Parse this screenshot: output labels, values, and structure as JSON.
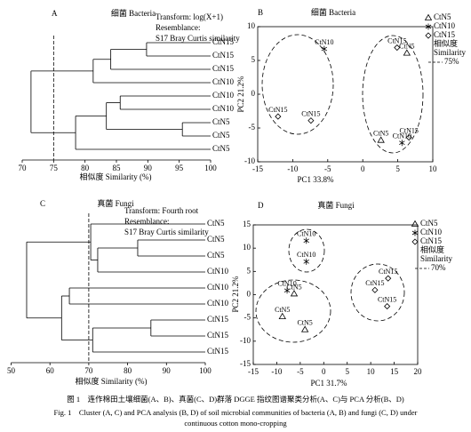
{
  "chart_data": [
    {
      "type": "dendrogram",
      "panel": "A",
      "title": "细菌 Bacteria",
      "annotations": [
        "Transform: log(X+1)",
        "Resemblance:",
        "S17 Bray Curtis similarity"
      ],
      "x_label": "相似度 Similarity (%)",
      "xlim": [
        70,
        100
      ],
      "xticks": [
        70,
        75,
        80,
        85,
        90,
        95,
        100
      ],
      "cutoff": 75,
      "tree": {
        "height": 71.4,
        "children": [
          {
            "height": 81.3,
            "children": [
              {
                "height": 84.1,
                "children": [
                  {
                    "height": 89.8,
                    "children": [
                      {
                        "label": "CtN15"
                      },
                      {
                        "label": "CtN15"
                      }
                    ]
                  },
                  {
                    "label": "CtN15"
                  }
                ]
              },
              {
                "label": "CtN10"
              }
            ]
          },
          {
            "height": 78.5,
            "children": [
              {
                "height": 83.4,
                "children": [
                  {
                    "height": 85.6,
                    "children": [
                      {
                        "label": "CtN10"
                      },
                      {
                        "label": "CtN10"
                      }
                    ]
                  },
                  {
                    "height": 95.5,
                    "children": [
                      {
                        "label": "CtN5"
                      },
                      {
                        "label": "CtN5"
                      }
                    ]
                  }
                ]
              },
              {
                "label": "CtN5"
              }
            ]
          }
        ]
      }
    },
    {
      "type": "scatter",
      "panel": "B",
      "title": "细菌 Bacteria",
      "x_label": "PC1 33.8%",
      "y_label": "PC2 21.2%",
      "xlim": [
        -15,
        10
      ],
      "xticks": [
        -15,
        -10,
        -5,
        0,
        5,
        10
      ],
      "ylim": [
        -10,
        10
      ],
      "yticks": [
        -10,
        -5,
        0,
        5,
        10
      ],
      "series": [
        {
          "name": "CtN5",
          "marker": "triangle",
          "color": "#000000",
          "x": [
            6.3,
            2.6
          ],
          "values": [
            6.1,
            -6.8
          ],
          "point_labels": [
            "CtN5",
            "CtN5"
          ]
        },
        {
          "name": "CtN10",
          "marker": "asterisk",
          "color": "#000000",
          "x": [
            -5.5,
            5.6
          ],
          "values": [
            6.7,
            -7.2
          ],
          "point_labels": [
            "CtN10",
            "CtN10"
          ]
        },
        {
          "name": "CtN15",
          "marker": "diamond",
          "color": "#000000",
          "x": [
            4.9,
            -12.1,
            -7.4,
            6.6
          ],
          "values": [
            6.9,
            -3.3,
            -3.9,
            -6.4
          ],
          "point_labels": [
            "CtN15",
            "CtN15",
            "CtN15",
            "CtN15"
          ]
        }
      ],
      "legend_notes": [
        "相似度",
        "Similarity",
        "75%"
      ]
    },
    {
      "type": "dendrogram",
      "panel": "C",
      "title": "真菌 Fungi",
      "annotations": [
        "Transform: Fourth root",
        "Resemblance:",
        "S17 Bray Curtis similarity"
      ],
      "x_label": "相似度 Similarity (%)",
      "xlim": [
        50,
        100
      ],
      "xticks": [
        50,
        60,
        70,
        80,
        90,
        100
      ],
      "cutoff": 70,
      "tree": {
        "height": 54,
        "children": [
          {
            "height": 70.5,
            "children": [
              {
                "label": "CtN5"
              },
              {
                "height": 72.3,
                "children": [
                  {
                    "height": 82.6,
                    "children": [
                      {
                        "label": "CtN5"
                      },
                      {
                        "label": "CtN5"
                      }
                    ]
                  },
                  {
                    "label": "CtN10"
                  }
                ]
              }
            ]
          },
          {
            "height": 63,
            "children": [
              {
                "height": 65,
                "children": [
                  {
                    "label": "CtN10"
                  },
                  {
                    "label": "CtN10"
                  }
                ]
              },
              {
                "height": 71,
                "children": [
                  {
                    "height": 86,
                    "children": [
                      {
                        "label": "CtN15"
                      },
                      {
                        "label": "CtN15"
                      }
                    ]
                  },
                  {
                    "label": "CtN15"
                  }
                ]
              }
            ]
          }
        ]
      }
    },
    {
      "type": "scatter",
      "panel": "D",
      "title": "真菌 Fungi",
      "x_label": "PC1 31.7%",
      "y_label": "PC2 21.2%",
      "xlim": [
        -15,
        20
      ],
      "xticks": [
        -15,
        -10,
        -5,
        0,
        5,
        10,
        15,
        20
      ],
      "ylim": [
        -15,
        15
      ],
      "yticks": [
        -15,
        -10,
        -5,
        0,
        5,
        10,
        15
      ],
      "series": [
        {
          "name": "CtN5",
          "marker": "triangle",
          "color": "#000000",
          "x": [
            -6.3,
            -8.8,
            -4.0
          ],
          "values": [
            0.2,
            -4.7,
            -7.5
          ],
          "point_labels": [
            "CtN5",
            "CtN5",
            "CtN5"
          ]
        },
        {
          "name": "CtN10",
          "marker": "asterisk",
          "color": "#000000",
          "x": [
            -3.7,
            -3.7,
            -7.8
          ],
          "values": [
            11.6,
            7.1,
            0.9
          ],
          "point_labels": [
            "CtN10",
            "CtN10",
            "CtN10"
          ]
        },
        {
          "name": "CtN15",
          "marker": "diamond",
          "color": "#000000",
          "x": [
            13.7,
            10.9,
            13.5
          ],
          "values": [
            3.5,
            1.0,
            -2.5
          ],
          "point_labels": [
            "CtN15",
            "CtN15",
            "CtN15"
          ]
        }
      ],
      "legend_notes": [
        "相似度",
        "Similarity",
        "70%"
      ]
    }
  ],
  "caption": {
    "zh": "图 1　连作棉田土壤细菌(A、B)、真菌(C、D)群落 DGGE 指纹图谱聚类分析(A、C)与 PCA 分析(B、D)",
    "en": [
      "Fig. 1　Cluster (A, C) and PCA analysis (B, D) of soil microbial communities of bacteria (A, B) and fungi (C, D) under",
      "continuous cotton mono-cropping"
    ]
  }
}
